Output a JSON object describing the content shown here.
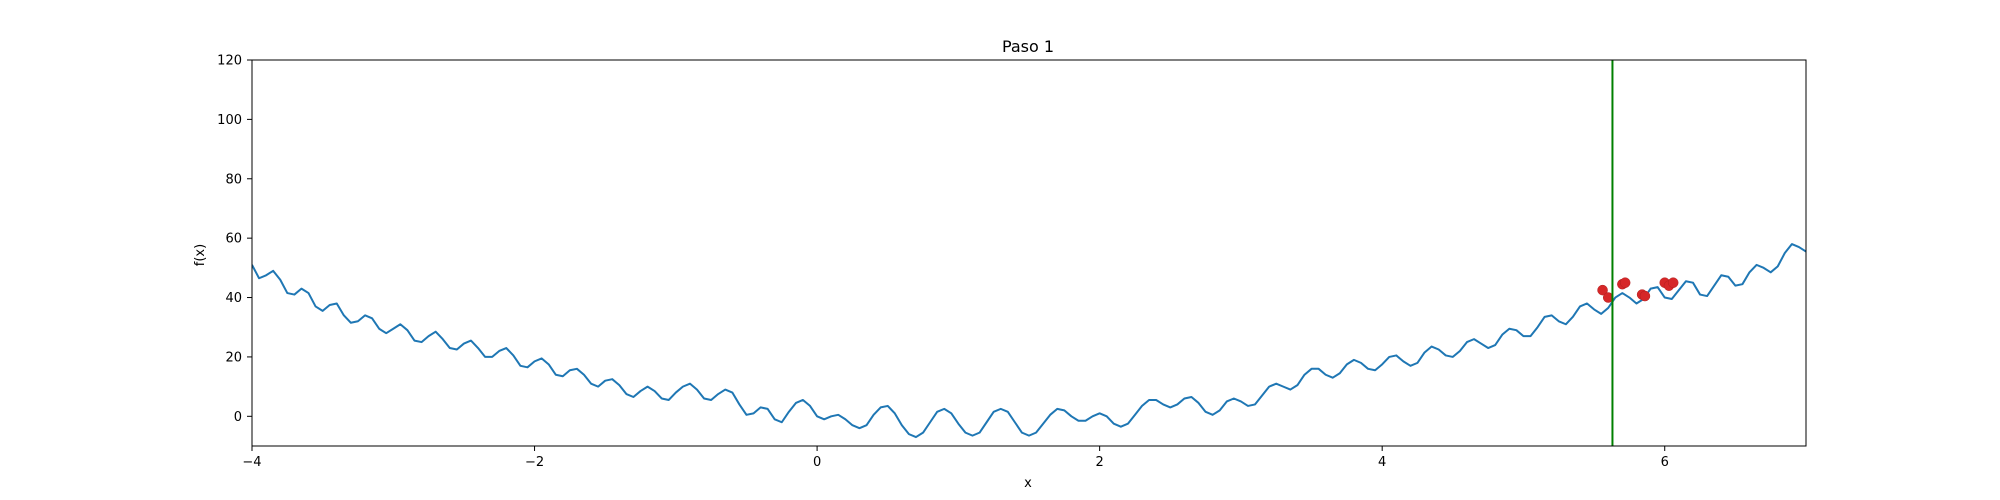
{
  "chart_data": {
    "type": "line",
    "title": "Paso 1",
    "xlabel": "x",
    "ylabel": "f(x)",
    "xlim": [
      -4,
      7
    ],
    "ylim": [
      -10,
      120
    ],
    "xticks": [
      -4,
      -2,
      0,
      2,
      4,
      6
    ],
    "xtick_labels": [
      "−4",
      "−2",
      "0",
      "2",
      "4",
      "6"
    ],
    "yticks": [
      0,
      20,
      40,
      60,
      80,
      100,
      120
    ],
    "ytick_labels": [
      "0",
      "20",
      "40",
      "60",
      "80",
      "100",
      "120"
    ],
    "grid": false,
    "series": [
      {
        "kind": "line",
        "color": "#1f77b4",
        "points": [
          [
            -4.0,
            51.0
          ],
          [
            -3.95,
            46.5
          ],
          [
            -3.9,
            47.5
          ],
          [
            -3.85,
            49.0
          ],
          [
            -3.8,
            46.0
          ],
          [
            -3.75,
            41.5
          ],
          [
            -3.7,
            41.0
          ],
          [
            -3.65,
            43.0
          ],
          [
            -3.6,
            41.5
          ],
          [
            -3.55,
            37.0
          ],
          [
            -3.5,
            35.5
          ],
          [
            -3.45,
            37.5
          ],
          [
            -3.4,
            38.0
          ],
          [
            -3.35,
            34.0
          ],
          [
            -3.3,
            31.5
          ],
          [
            -3.25,
            32.0
          ],
          [
            -3.2,
            34.0
          ],
          [
            -3.15,
            33.0
          ],
          [
            -3.1,
            29.5
          ],
          [
            -3.05,
            28.0
          ],
          [
            -3.0,
            29.5
          ],
          [
            -2.95,
            31.0
          ],
          [
            -2.9,
            29.0
          ],
          [
            -2.85,
            25.5
          ],
          [
            -2.8,
            25.0
          ],
          [
            -2.75,
            27.0
          ],
          [
            -2.7,
            28.5
          ],
          [
            -2.65,
            26.0
          ],
          [
            -2.6,
            23.0
          ],
          [
            -2.55,
            22.5
          ],
          [
            -2.5,
            24.5
          ],
          [
            -2.45,
            25.5
          ],
          [
            -2.4,
            23.0
          ],
          [
            -2.35,
            20.0
          ],
          [
            -2.3,
            20.0
          ],
          [
            -2.25,
            22.0
          ],
          [
            -2.2,
            23.0
          ],
          [
            -2.15,
            20.5
          ],
          [
            -2.1,
            17.0
          ],
          [
            -2.05,
            16.5
          ],
          [
            -2.0,
            18.5
          ],
          [
            -1.95,
            19.5
          ],
          [
            -1.9,
            17.5
          ],
          [
            -1.85,
            14.0
          ],
          [
            -1.8,
            13.5
          ],
          [
            -1.75,
            15.5
          ],
          [
            -1.7,
            16.0
          ],
          [
            -1.65,
            14.0
          ],
          [
            -1.6,
            11.0
          ],
          [
            -1.55,
            10.0
          ],
          [
            -1.5,
            12.0
          ],
          [
            -1.45,
            12.5
          ],
          [
            -1.4,
            10.5
          ],
          [
            -1.35,
            7.5
          ],
          [
            -1.3,
            6.5
          ],
          [
            -1.25,
            8.5
          ],
          [
            -1.2,
            10.0
          ],
          [
            -1.15,
            8.5
          ],
          [
            -1.1,
            6.0
          ],
          [
            -1.05,
            5.5
          ],
          [
            -1.0,
            8.0
          ],
          [
            -0.95,
            10.0
          ],
          [
            -0.9,
            11.0
          ],
          [
            -0.85,
            9.0
          ],
          [
            -0.8,
            6.0
          ],
          [
            -0.75,
            5.5
          ],
          [
            -0.7,
            7.5
          ],
          [
            -0.65,
            9.0
          ],
          [
            -0.6,
            8.0
          ],
          [
            -0.55,
            4.0
          ],
          [
            -0.5,
            0.5
          ],
          [
            -0.45,
            1.0
          ],
          [
            -0.4,
            3.0
          ],
          [
            -0.35,
            2.5
          ],
          [
            -0.3,
            -1.0
          ],
          [
            -0.25,
            -2.0
          ],
          [
            -0.2,
            1.5
          ],
          [
            -0.15,
            4.5
          ],
          [
            -0.1,
            5.5
          ],
          [
            -0.05,
            3.5
          ],
          [
            0.0,
            0.0
          ],
          [
            0.05,
            -1.0
          ],
          [
            0.1,
            0.0
          ],
          [
            0.15,
            0.5
          ],
          [
            0.2,
            -1.0
          ],
          [
            0.25,
            -3.0
          ],
          [
            0.3,
            -4.0
          ],
          [
            0.35,
            -3.0
          ],
          [
            0.4,
            0.5
          ],
          [
            0.45,
            3.0
          ],
          [
            0.5,
            3.5
          ],
          [
            0.55,
            1.0
          ],
          [
            0.6,
            -3.0
          ],
          [
            0.65,
            -6.0
          ],
          [
            0.7,
            -7.0
          ],
          [
            0.75,
            -5.5
          ],
          [
            0.8,
            -2.0
          ],
          [
            0.85,
            1.5
          ],
          [
            0.9,
            2.5
          ],
          [
            0.95,
            1.0
          ],
          [
            1.0,
            -2.5
          ],
          [
            1.05,
            -5.5
          ],
          [
            1.1,
            -6.5
          ],
          [
            1.15,
            -5.5
          ],
          [
            1.2,
            -2.0
          ],
          [
            1.25,
            1.5
          ],
          [
            1.3,
            2.5
          ],
          [
            1.35,
            1.5
          ],
          [
            1.4,
            -2.0
          ],
          [
            1.45,
            -5.5
          ],
          [
            1.5,
            -6.5
          ],
          [
            1.55,
            -5.5
          ],
          [
            1.6,
            -2.5
          ],
          [
            1.65,
            0.5
          ],
          [
            1.7,
            2.5
          ],
          [
            1.75,
            2.0
          ],
          [
            1.8,
            0.0
          ],
          [
            1.85,
            -1.5
          ],
          [
            1.9,
            -1.5
          ],
          [
            1.95,
            0.0
          ],
          [
            2.0,
            1.0
          ],
          [
            2.05,
            0.0
          ],
          [
            2.1,
            -2.5
          ],
          [
            2.15,
            -3.5
          ],
          [
            2.2,
            -2.5
          ],
          [
            2.25,
            0.5
          ],
          [
            2.3,
            3.5
          ],
          [
            2.35,
            5.5
          ],
          [
            2.4,
            5.5
          ],
          [
            2.45,
            4.0
          ],
          [
            2.5,
            3.0
          ],
          [
            2.55,
            4.0
          ],
          [
            2.6,
            6.0
          ],
          [
            2.65,
            6.5
          ],
          [
            2.7,
            4.5
          ],
          [
            2.75,
            1.5
          ],
          [
            2.8,
            0.5
          ],
          [
            2.85,
            2.0
          ],
          [
            2.9,
            5.0
          ],
          [
            2.95,
            6.0
          ],
          [
            3.0,
            5.0
          ],
          [
            3.05,
            3.5
          ],
          [
            3.1,
            4.0
          ],
          [
            3.15,
            7.0
          ],
          [
            3.2,
            10.0
          ],
          [
            3.25,
            11.0
          ],
          [
            3.3,
            10.0
          ],
          [
            3.35,
            9.0
          ],
          [
            3.4,
            10.5
          ],
          [
            3.45,
            14.0
          ],
          [
            3.5,
            16.0
          ],
          [
            3.55,
            16.0
          ],
          [
            3.6,
            14.0
          ],
          [
            3.65,
            13.0
          ],
          [
            3.7,
            14.5
          ],
          [
            3.75,
            17.5
          ],
          [
            3.8,
            19.0
          ],
          [
            3.85,
            18.0
          ],
          [
            3.9,
            16.0
          ],
          [
            3.95,
            15.5
          ],
          [
            4.0,
            17.5
          ],
          [
            4.05,
            20.0
          ],
          [
            4.1,
            20.5
          ],
          [
            4.15,
            18.5
          ],
          [
            4.2,
            17.0
          ],
          [
            4.25,
            18.0
          ],
          [
            4.3,
            21.5
          ],
          [
            4.35,
            23.5
          ],
          [
            4.4,
            22.5
          ],
          [
            4.45,
            20.5
          ],
          [
            4.5,
            20.0
          ],
          [
            4.55,
            22.0
          ],
          [
            4.6,
            25.0
          ],
          [
            4.65,
            26.0
          ],
          [
            4.7,
            24.5
          ],
          [
            4.75,
            23.0
          ],
          [
            4.8,
            24.0
          ],
          [
            4.85,
            27.5
          ],
          [
            4.9,
            29.5
          ],
          [
            4.95,
            29.0
          ],
          [
            5.0,
            27.0
          ],
          [
            5.05,
            27.0
          ],
          [
            5.1,
            30.0
          ],
          [
            5.15,
            33.5
          ],
          [
            5.2,
            34.0
          ],
          [
            5.25,
            32.0
          ],
          [
            5.3,
            31.0
          ],
          [
            5.35,
            33.5
          ],
          [
            5.4,
            37.0
          ],
          [
            5.45,
            38.0
          ],
          [
            5.5,
            36.0
          ],
          [
            5.55,
            34.5
          ],
          [
            5.6,
            36.5
          ],
          [
            5.65,
            40.0
          ],
          [
            5.7,
            41.5
          ],
          [
            5.75,
            40.0
          ],
          [
            5.8,
            38.0
          ],
          [
            5.85,
            39.5
          ],
          [
            5.9,
            43.0
          ],
          [
            5.95,
            43.5
          ],
          [
            6.0,
            40.0
          ],
          [
            6.05,
            39.5
          ],
          [
            6.1,
            42.5
          ],
          [
            6.15,
            45.5
          ],
          [
            6.2,
            45.0
          ],
          [
            6.25,
            41.0
          ],
          [
            6.3,
            40.5
          ],
          [
            6.35,
            44.0
          ],
          [
            6.4,
            47.5
          ],
          [
            6.45,
            47.0
          ],
          [
            6.5,
            44.0
          ],
          [
            6.55,
            44.5
          ],
          [
            6.6,
            48.5
          ],
          [
            6.65,
            51.0
          ],
          [
            6.7,
            50.0
          ],
          [
            6.75,
            48.5
          ],
          [
            6.8,
            50.5
          ],
          [
            6.85,
            55.0
          ],
          [
            6.9,
            58.0
          ],
          [
            6.95,
            57.0
          ],
          [
            7.0,
            55.5
          ]
        ]
      },
      {
        "kind": "scatter",
        "color": "#d62728",
        "points": [
          [
            5.56,
            42.5
          ],
          [
            5.6,
            40.0
          ],
          [
            5.7,
            44.5
          ],
          [
            5.72,
            45.0
          ],
          [
            5.84,
            41.0
          ],
          [
            5.86,
            40.5
          ],
          [
            6.0,
            45.0
          ],
          [
            6.03,
            44.0
          ],
          [
            6.06,
            45.0
          ]
        ]
      },
      {
        "kind": "vline",
        "color": "#008000",
        "x": 5.63
      }
    ]
  }
}
